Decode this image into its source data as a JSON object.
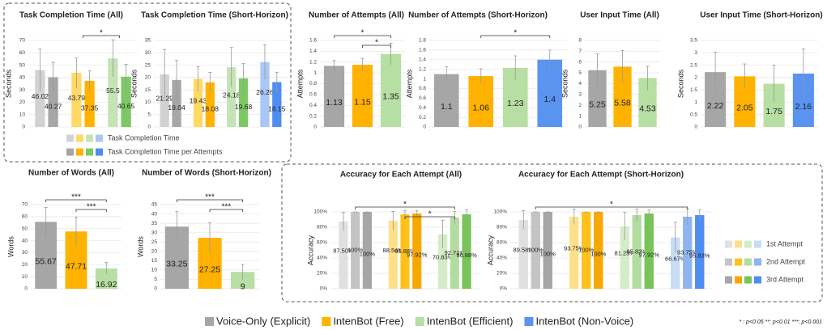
{
  "chart_data": [
    {
      "type": "grouped-bar",
      "title": "Task Completion Time (All)",
      "ylabel": "Seconds",
      "ylim": [
        0,
        70
      ],
      "yticks": [
        0,
        10,
        20,
        30,
        40,
        50,
        60,
        70
      ],
      "grid": true,
      "series": [
        {
          "colors": [
            "#d2d2d2",
            "#a6a6a6"
          ],
          "values": [
            46.02,
            40.27
          ],
          "errors": [
            17,
            12
          ]
        },
        {
          "colors": [
            "#ffd966",
            "#ffb300"
          ],
          "values": [
            43.79,
            37.35
          ],
          "errors": [
            12,
            8
          ]
        },
        {
          "colors": [
            "#c5e3b5",
            "#7cc963"
          ],
          "values": [
            55.5,
            40.65
          ],
          "errors": [
            15,
            10
          ]
        }
      ],
      "brackets": [
        {
          "from": 1,
          "to": 2,
          "label": "*"
        }
      ]
    },
    {
      "type": "grouped-bar",
      "title": "Task Completion Time (Short-Horizon)",
      "ylabel": "Seconds",
      "ylim": [
        0,
        35
      ],
      "yticks": [
        0,
        5,
        10,
        15,
        20,
        25,
        30,
        35
      ],
      "grid": true,
      "series": [
        {
          "colors": [
            "#d2d2d2",
            "#a6a6a6"
          ],
          "values": [
            21.29,
            19.04
          ],
          "errors": [
            10,
            8
          ]
        },
        {
          "colors": [
            "#ffd966",
            "#ffb300"
          ],
          "values": [
            19.43,
            18.08
          ],
          "errors": [
            5,
            4
          ]
        },
        {
          "colors": [
            "#c5e3b5",
            "#7cc963"
          ],
          "values": [
            24.18,
            19.68
          ],
          "errors": [
            8,
            6
          ]
        },
        {
          "colors": [
            "#a9c8f5",
            "#4f8ef0"
          ],
          "values": [
            26.26,
            18.15
          ],
          "errors": [
            7,
            4
          ]
        }
      ],
      "brackets": []
    },
    {
      "type": "grouped-bar",
      "title": "Number of Attempts (All)",
      "ylabel": "Attempts",
      "ylim": [
        0,
        1.6
      ],
      "yticks": [
        0,
        0.2,
        0.4,
        0.6,
        0.8,
        1,
        1.2,
        1.4,
        1.6
      ],
      "grid": true,
      "series": [
        {
          "colors": [
            "#a6a6a6"
          ],
          "values": [
            1.13
          ],
          "errors": [
            0.1
          ]
        },
        {
          "colors": [
            "#ffb300"
          ],
          "values": [
            1.15
          ],
          "errors": [
            0.12
          ]
        },
        {
          "colors": [
            "#b7dea3"
          ],
          "values": [
            1.35
          ],
          "errors": [
            0.2
          ]
        }
      ],
      "brackets": [
        {
          "from": 0,
          "to": 2,
          "label": "*"
        },
        {
          "from": 1,
          "to": 2,
          "label": "*"
        }
      ]
    },
    {
      "type": "grouped-bar",
      "title": "Number of Attempts (Short-Horizon)",
      "ylabel": "Attempts",
      "ylim": [
        0,
        1.8
      ],
      "yticks": [
        0,
        0.2,
        0.4,
        0.6,
        0.8,
        1,
        1.2,
        1.4,
        1.6,
        1.8
      ],
      "grid": true,
      "series": [
        {
          "colors": [
            "#a6a6a6"
          ],
          "values": [
            1.1
          ],
          "errors": [
            0.15
          ]
        },
        {
          "colors": [
            "#ffb300"
          ],
          "values": [
            1.06
          ],
          "errors": [
            0.15
          ]
        },
        {
          "colors": [
            "#b7dea3"
          ],
          "values": [
            1.23
          ],
          "errors": [
            0.25
          ]
        },
        {
          "colors": [
            "#5a93f0"
          ],
          "values": [
            1.4
          ],
          "errors": [
            0.2
          ]
        }
      ],
      "brackets": [
        {
          "from": 1,
          "to": 3,
          "label": "*"
        }
      ]
    },
    {
      "type": "grouped-bar",
      "title": "User Input Time (All)",
      "ylabel": "Seconds",
      "ylim": [
        0,
        8
      ],
      "yticks": [
        0,
        1,
        2,
        3,
        4,
        5,
        6,
        7,
        8
      ],
      "grid": true,
      "series": [
        {
          "colors": [
            "#a6a6a6"
          ],
          "values": [
            5.25
          ],
          "errors": [
            1.5
          ]
        },
        {
          "colors": [
            "#ffb300"
          ],
          "values": [
            5.58
          ],
          "errors": [
            1.5
          ]
        },
        {
          "colors": [
            "#b7dea3"
          ],
          "values": [
            4.53
          ],
          "errors": [
            1.1
          ]
        }
      ],
      "brackets": []
    },
    {
      "type": "grouped-bar",
      "title": "User Input Time (Short-Horizon)",
      "ylabel": "Seconds",
      "ylim": [
        0,
        3.5
      ],
      "yticks": [
        0,
        0.5,
        1,
        1.5,
        2,
        2.5,
        3,
        3.5
      ],
      "grid": true,
      "series": [
        {
          "colors": [
            "#a6a6a6"
          ],
          "values": [
            2.22
          ],
          "errors": [
            0.8
          ]
        },
        {
          "colors": [
            "#ffb300"
          ],
          "values": [
            2.05
          ],
          "errors": [
            0.5
          ]
        },
        {
          "colors": [
            "#b7dea3"
          ],
          "values": [
            1.75
          ],
          "errors": [
            0.75
          ]
        },
        {
          "colors": [
            "#5a93f0"
          ],
          "values": [
            2.16
          ],
          "errors": [
            1.0
          ]
        }
      ],
      "brackets": []
    },
    {
      "type": "grouped-bar",
      "title": "Number of Words (All)",
      "ylabel": "Words",
      "ylim": [
        0,
        70
      ],
      "yticks": [
        0,
        10,
        20,
        30,
        40,
        50,
        60,
        70
      ],
      "grid": true,
      "series": [
        {
          "colors": [
            "#a6a6a6"
          ],
          "values": [
            55.67
          ],
          "errors": [
            12
          ]
        },
        {
          "colors": [
            "#ffb300"
          ],
          "values": [
            47.71
          ],
          "errors": [
            12
          ]
        },
        {
          "colors": [
            "#b7dea3"
          ],
          "values": [
            16.92
          ],
          "errors": [
            5
          ]
        }
      ],
      "brackets": [
        {
          "from": 0,
          "to": 2,
          "label": "***"
        },
        {
          "from": 1,
          "to": 2,
          "label": "***"
        }
      ]
    },
    {
      "type": "grouped-bar",
      "title": "Number of Words (Short-Horizon)",
      "ylabel": "Words",
      "ylim": [
        0,
        45
      ],
      "yticks": [
        0,
        5,
        10,
        15,
        20,
        25,
        30,
        35,
        40,
        45
      ],
      "grid": true,
      "series": [
        {
          "colors": [
            "#a6a6a6"
          ],
          "values": [
            33.25
          ],
          "errors": [
            8
          ]
        },
        {
          "colors": [
            "#ffb300"
          ],
          "values": [
            27.25
          ],
          "errors": [
            8
          ]
        },
        {
          "colors": [
            "#b7dea3"
          ],
          "values": [
            9
          ],
          "errors": [
            4
          ]
        }
      ],
      "brackets": [
        {
          "from": 0,
          "to": 2,
          "label": "***"
        },
        {
          "from": 1,
          "to": 2,
          "label": "***"
        }
      ]
    },
    {
      "type": "grouped-bar",
      "title": "Accuracy for Each Attempt (All)",
      "ylabel": "Accuracy",
      "ylim": [
        0,
        100
      ],
      "yticks": [
        {
          "value": 0,
          "label": "0%"
        },
        {
          "value": 20,
          "label": "20%"
        },
        {
          "value": 40,
          "label": "40%"
        },
        {
          "value": 60,
          "label": "60%"
        },
        {
          "value": 80,
          "label": "80%"
        },
        {
          "value": 100,
          "label": "100%"
        }
      ],
      "grid": true,
      "series": [
        {
          "colors": [
            "#e0e0e0",
            "#c4c4c4",
            "#a6a6a6"
          ],
          "values": [
            87.5,
            100,
            100
          ],
          "value_labels": [
            "87.50%",
            "100%",
            "100%"
          ],
          "errors": [
            12,
            0,
            0
          ]
        },
        {
          "colors": [
            "#ffe08a",
            "#ffc21a",
            "#f7a800"
          ],
          "values": [
            88.54,
            96.88,
            97.92
          ],
          "value_labels": [
            "88.54%",
            "96.88%",
            "97.92%"
          ],
          "errors": [
            12,
            5,
            4
          ]
        },
        {
          "colors": [
            "#d4ecc8",
            "#b3dca0",
            "#78c35a"
          ],
          "values": [
            70.83,
            92.71,
            96.88
          ],
          "value_labels": [
            "70.83%",
            "92.71%",
            "96.88%"
          ],
          "errors": [
            18,
            8,
            6
          ]
        }
      ],
      "brackets": [
        {
          "from": 0,
          "to": 2,
          "label": "*"
        },
        {
          "from": 1,
          "to": 2,
          "label": "*"
        }
      ]
    },
    {
      "type": "grouped-bar",
      "title": "Accuracy for Each Attempt (Short-Horizon)",
      "ylabel": "Accuracy",
      "ylim": [
        0,
        100
      ],
      "yticks": [
        {
          "value": 0,
          "label": "0%"
        },
        {
          "value": 20,
          "label": "20%"
        },
        {
          "value": 40,
          "label": "40%"
        },
        {
          "value": 60,
          "label": "60%"
        },
        {
          "value": 80,
          "label": "80%"
        },
        {
          "value": 100,
          "label": "100%"
        }
      ],
      "grid": true,
      "series": [
        {
          "colors": [
            "#e0e0e0",
            "#c4c4c4",
            "#a6a6a6"
          ],
          "values": [
            89.58,
            100,
            100
          ],
          "value_labels": [
            "89.58%",
            "100%",
            "100%"
          ],
          "errors": [
            12,
            0,
            0
          ]
        },
        {
          "colors": [
            "#ffe08a",
            "#ffc21a",
            "#f7a800"
          ],
          "values": [
            93.75,
            100,
            100
          ],
          "value_labels": [
            "93.75%",
            "100%",
            "100%"
          ],
          "errors": [
            10,
            0,
            0
          ]
        },
        {
          "colors": [
            "#d4ecc8",
            "#b3dca0",
            "#78c35a"
          ],
          "values": [
            81.25,
            95.83,
            97.92
          ],
          "value_labels": [
            "81.25%",
            "95.83%",
            "97.92%"
          ],
          "errors": [
            18,
            8,
            5
          ]
        },
        {
          "colors": [
            "#c8dcf5",
            "#8fb5f0",
            "#4f8ef0"
          ],
          "values": [
            66.67,
            93.75,
            95.83
          ],
          "value_labels": [
            "66.67%",
            "93.75%",
            "95.83%"
          ],
          "errors": [
            20,
            10,
            7
          ]
        }
      ],
      "brackets": [
        {
          "from": 0,
          "to": 3,
          "label": "*"
        }
      ]
    }
  ],
  "sublegends": [
    {
      "items": [
        {
          "name": "Task Completion Time",
          "colors": [
            "#d2d2d2",
            "#ffd966",
            "#c5e3b5",
            "#a9c8f5"
          ]
        },
        {
          "name": "Task Completion Time per Attempts",
          "colors": [
            "#a6a6a6",
            "#ffb300",
            "#7cc963",
            "#4f8ef0"
          ]
        }
      ]
    },
    {
      "items": [
        {
          "name": "1st Attempt",
          "colors": [
            "#e0e0e0",
            "#ffe08a",
            "#d4ecc8",
            "#c8dcf5"
          ]
        },
        {
          "name": "2nd Attempt",
          "colors": [
            "#c4c4c4",
            "#ffc21a",
            "#b3dca0",
            "#8fb5f0"
          ]
        },
        {
          "name": "3rd Attempt",
          "colors": [
            "#a6a6a6",
            "#f7a800",
            "#78c35a",
            "#4f8ef0"
          ]
        }
      ]
    }
  ],
  "legend": [
    {
      "name": "Voice-Only (Explicit)",
      "color": "#a6a6a6"
    },
    {
      "name": "IntenBot (Free)",
      "color": "#ffb300"
    },
    {
      "name": "IntenBot (Efficient)",
      "color": "#b7dea3"
    },
    {
      "name": "IntenBot (Non-Voice)",
      "color": "#5a93f0"
    }
  ],
  "footnote": "* : p<0.05  **: p<0.01  ***: p<0.001"
}
